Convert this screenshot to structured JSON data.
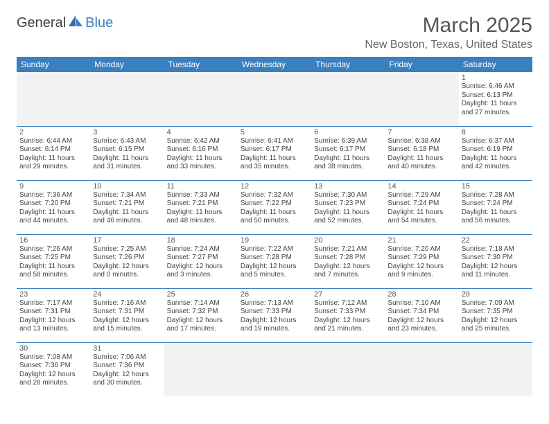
{
  "logo": {
    "part1": "General",
    "part2": "Blue"
  },
  "title": "March 2025",
  "location": "New Boston, Texas, United States",
  "colors": {
    "header_bg": "#3a7fbf",
    "header_text": "#ffffff",
    "border": "#3a7fbf",
    "empty_bg": "#f2f2f2",
    "title_color": "#555555",
    "location_color": "#666666",
    "body_text": "#444444"
  },
  "weekdays": [
    "Sunday",
    "Monday",
    "Tuesday",
    "Wednesday",
    "Thursday",
    "Friday",
    "Saturday"
  ],
  "weeks": [
    [
      null,
      null,
      null,
      null,
      null,
      null,
      {
        "n": "1",
        "sr": "Sunrise: 6:46 AM",
        "ss": "Sunset: 6:13 PM",
        "dl": "Daylight: 11 hours and 27 minutes."
      }
    ],
    [
      {
        "n": "2",
        "sr": "Sunrise: 6:44 AM",
        "ss": "Sunset: 6:14 PM",
        "dl": "Daylight: 11 hours and 29 minutes."
      },
      {
        "n": "3",
        "sr": "Sunrise: 6:43 AM",
        "ss": "Sunset: 6:15 PM",
        "dl": "Daylight: 11 hours and 31 minutes."
      },
      {
        "n": "4",
        "sr": "Sunrise: 6:42 AM",
        "ss": "Sunset: 6:16 PM",
        "dl": "Daylight: 11 hours and 33 minutes."
      },
      {
        "n": "5",
        "sr": "Sunrise: 6:41 AM",
        "ss": "Sunset: 6:17 PM",
        "dl": "Daylight: 11 hours and 35 minutes."
      },
      {
        "n": "6",
        "sr": "Sunrise: 6:39 AM",
        "ss": "Sunset: 6:17 PM",
        "dl": "Daylight: 11 hours and 38 minutes."
      },
      {
        "n": "7",
        "sr": "Sunrise: 6:38 AM",
        "ss": "Sunset: 6:18 PM",
        "dl": "Daylight: 11 hours and 40 minutes."
      },
      {
        "n": "8",
        "sr": "Sunrise: 6:37 AM",
        "ss": "Sunset: 6:19 PM",
        "dl": "Daylight: 11 hours and 42 minutes."
      }
    ],
    [
      {
        "n": "9",
        "sr": "Sunrise: 7:36 AM",
        "ss": "Sunset: 7:20 PM",
        "dl": "Daylight: 11 hours and 44 minutes."
      },
      {
        "n": "10",
        "sr": "Sunrise: 7:34 AM",
        "ss": "Sunset: 7:21 PM",
        "dl": "Daylight: 11 hours and 46 minutes."
      },
      {
        "n": "11",
        "sr": "Sunrise: 7:33 AM",
        "ss": "Sunset: 7:21 PM",
        "dl": "Daylight: 11 hours and 48 minutes."
      },
      {
        "n": "12",
        "sr": "Sunrise: 7:32 AM",
        "ss": "Sunset: 7:22 PM",
        "dl": "Daylight: 11 hours and 50 minutes."
      },
      {
        "n": "13",
        "sr": "Sunrise: 7:30 AM",
        "ss": "Sunset: 7:23 PM",
        "dl": "Daylight: 11 hours and 52 minutes."
      },
      {
        "n": "14",
        "sr": "Sunrise: 7:29 AM",
        "ss": "Sunset: 7:24 PM",
        "dl": "Daylight: 11 hours and 54 minutes."
      },
      {
        "n": "15",
        "sr": "Sunrise: 7:28 AM",
        "ss": "Sunset: 7:24 PM",
        "dl": "Daylight: 11 hours and 56 minutes."
      }
    ],
    [
      {
        "n": "16",
        "sr": "Sunrise: 7:26 AM",
        "ss": "Sunset: 7:25 PM",
        "dl": "Daylight: 11 hours and 58 minutes."
      },
      {
        "n": "17",
        "sr": "Sunrise: 7:25 AM",
        "ss": "Sunset: 7:26 PM",
        "dl": "Daylight: 12 hours and 0 minutes."
      },
      {
        "n": "18",
        "sr": "Sunrise: 7:24 AM",
        "ss": "Sunset: 7:27 PM",
        "dl": "Daylight: 12 hours and 3 minutes."
      },
      {
        "n": "19",
        "sr": "Sunrise: 7:22 AM",
        "ss": "Sunset: 7:28 PM",
        "dl": "Daylight: 12 hours and 5 minutes."
      },
      {
        "n": "20",
        "sr": "Sunrise: 7:21 AM",
        "ss": "Sunset: 7:28 PM",
        "dl": "Daylight: 12 hours and 7 minutes."
      },
      {
        "n": "21",
        "sr": "Sunrise: 7:20 AM",
        "ss": "Sunset: 7:29 PM",
        "dl": "Daylight: 12 hours and 9 minutes."
      },
      {
        "n": "22",
        "sr": "Sunrise: 7:18 AM",
        "ss": "Sunset: 7:30 PM",
        "dl": "Daylight: 12 hours and 11 minutes."
      }
    ],
    [
      {
        "n": "23",
        "sr": "Sunrise: 7:17 AM",
        "ss": "Sunset: 7:31 PM",
        "dl": "Daylight: 12 hours and 13 minutes."
      },
      {
        "n": "24",
        "sr": "Sunrise: 7:16 AM",
        "ss": "Sunset: 7:31 PM",
        "dl": "Daylight: 12 hours and 15 minutes."
      },
      {
        "n": "25",
        "sr": "Sunrise: 7:14 AM",
        "ss": "Sunset: 7:32 PM",
        "dl": "Daylight: 12 hours and 17 minutes."
      },
      {
        "n": "26",
        "sr": "Sunrise: 7:13 AM",
        "ss": "Sunset: 7:33 PM",
        "dl": "Daylight: 12 hours and 19 minutes."
      },
      {
        "n": "27",
        "sr": "Sunrise: 7:12 AM",
        "ss": "Sunset: 7:33 PM",
        "dl": "Daylight: 12 hours and 21 minutes."
      },
      {
        "n": "28",
        "sr": "Sunrise: 7:10 AM",
        "ss": "Sunset: 7:34 PM",
        "dl": "Daylight: 12 hours and 23 minutes."
      },
      {
        "n": "29",
        "sr": "Sunrise: 7:09 AM",
        "ss": "Sunset: 7:35 PM",
        "dl": "Daylight: 12 hours and 25 minutes."
      }
    ],
    [
      {
        "n": "30",
        "sr": "Sunrise: 7:08 AM",
        "ss": "Sunset: 7:36 PM",
        "dl": "Daylight: 12 hours and 28 minutes."
      },
      {
        "n": "31",
        "sr": "Sunrise: 7:06 AM",
        "ss": "Sunset: 7:36 PM",
        "dl": "Daylight: 12 hours and 30 minutes."
      },
      null,
      null,
      null,
      null,
      null
    ]
  ]
}
